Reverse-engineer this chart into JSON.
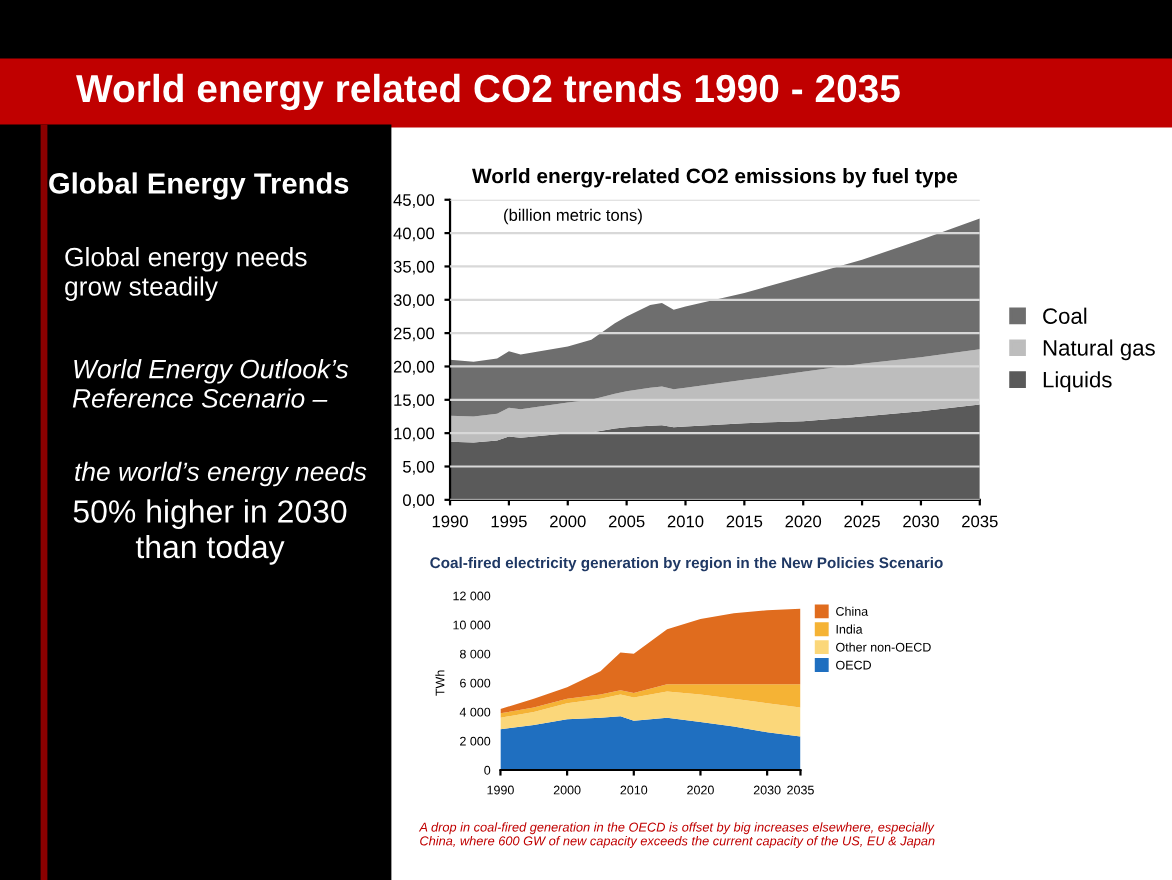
{
  "chart_data": [
    {
      "type": "other",
      "title": "World energy related CO2 trends 1990 - 2035",
      "annotations": [
        "Global Energy Trends",
        "Global energy needs\ngrow steadily",
        "World Energy Outlook’s\nReference Scenario –",
        "the world’s energy needs",
        "50% higher in 2030\nthan today"
      ]
    },
    {
      "type": "area",
      "stacked": true,
      "title": "World energy-related CO2 emissions by fuel type",
      "annotations": [
        "(billion metric tons)"
      ],
      "x": [
        1990,
        1992,
        1994,
        1995,
        1996,
        2000,
        2002,
        2004,
        2005,
        2007,
        2008,
        2009,
        2010,
        2015,
        2020,
        2025,
        2030,
        2035
      ],
      "series": [
        {
          "name": "Liquids",
          "color": "#5a5a5a",
          "values": [
            8.7,
            8.6,
            8.9,
            9.5,
            9.3,
            10.0,
            10.1,
            10.7,
            10.9,
            11.1,
            11.2,
            10.9,
            11.0,
            11.5,
            11.8,
            12.5,
            13.3,
            14.3
          ]
        },
        {
          "name": "Natural gas",
          "color": "#bdbdbd",
          "values": [
            3.9,
            3.9,
            4.0,
            4.3,
            4.3,
            4.6,
            4.9,
            5.2,
            5.4,
            5.7,
            5.8,
            5.7,
            5.8,
            6.5,
            7.4,
            7.9,
            8.1,
            8.3
          ]
        },
        {
          "name": "Coal",
          "color": "#6e6e6e",
          "values": [
            8.4,
            8.2,
            8.3,
            8.5,
            8.2,
            8.4,
            9.0,
            10.6,
            11.2,
            12.4,
            12.5,
            11.9,
            12.2,
            13.0,
            14.3,
            15.6,
            17.6,
            19.6
          ]
        }
      ],
      "xlim": [
        1990,
        2035
      ],
      "xticks": [
        1990,
        1995,
        2000,
        2005,
        2010,
        2015,
        2020,
        2025,
        2030,
        2035
      ],
      "ylim": [
        0,
        45
      ],
      "yticks": [
        {
          "value": 0,
          "label": "0,00"
        },
        {
          "value": 5,
          "label": "5,00"
        },
        {
          "value": 10,
          "label": "10,00"
        },
        {
          "value": 15,
          "label": "15,00"
        },
        {
          "value": 20,
          "label": "20,00"
        },
        {
          "value": 25,
          "label": "25,00"
        },
        {
          "value": 30,
          "label": "30,00"
        },
        {
          "value": 35,
          "label": "35,00"
        },
        {
          "value": 40,
          "label": "40,00"
        },
        {
          "value": 45,
          "label": "45,00"
        }
      ],
      "grid": "y",
      "legend": "right"
    },
    {
      "type": "area",
      "stacked": true,
      "title": "Coal-fired electricity generation by region in the New Policies Scenario",
      "ylabel": "TWh",
      "annotations": [
        "A drop in coal-fired generation in the OECD is offset by big increases elsewhere, especially\nChina, where 600 GW of new capacity exceeds the current capacity of the US, EU & Japan"
      ],
      "x": [
        1990,
        1995,
        2000,
        2005,
        2008,
        2010,
        2015,
        2020,
        2025,
        2030,
        2035
      ],
      "series": [
        {
          "name": "OECD",
          "color": "#1f6fc0",
          "values": [
            2800,
            3100,
            3500,
            3600,
            3700,
            3400,
            3600,
            3300,
            3000,
            2600,
            2300
          ]
        },
        {
          "name": "Other non-OECD",
          "color": "#fbd77a",
          "values": [
            800,
            900,
            1100,
            1300,
            1500,
            1600,
            1800,
            1900,
            1900,
            2000,
            2000
          ]
        },
        {
          "name": "India",
          "color": "#f5b335",
          "values": [
            300,
            300,
            300,
            300,
            300,
            300,
            500,
            700,
            1000,
            1300,
            1600
          ]
        },
        {
          "name": "China",
          "color": "#e06c1e",
          "values": [
            300,
            600,
            800,
            1600,
            2600,
            2700,
            3800,
            4500,
            4900,
            5100,
            5200
          ]
        }
      ],
      "xlim": [
        1990,
        2035
      ],
      "xticks": [
        1990,
        2000,
        2010,
        2020,
        2030,
        2035
      ],
      "ylim": [
        0,
        12000
      ],
      "yticks": [
        0,
        {
          "value": 2000,
          "label": "2 000"
        },
        {
          "value": 4000,
          "label": "4 000"
        },
        {
          "value": 6000,
          "label": "6 000"
        },
        {
          "value": 8000,
          "label": "8 000"
        },
        {
          "value": 10000,
          "label": "10 000"
        },
        {
          "value": 12000,
          "label": "12 000"
        }
      ],
      "grid": false,
      "legend": "right"
    }
  ]
}
